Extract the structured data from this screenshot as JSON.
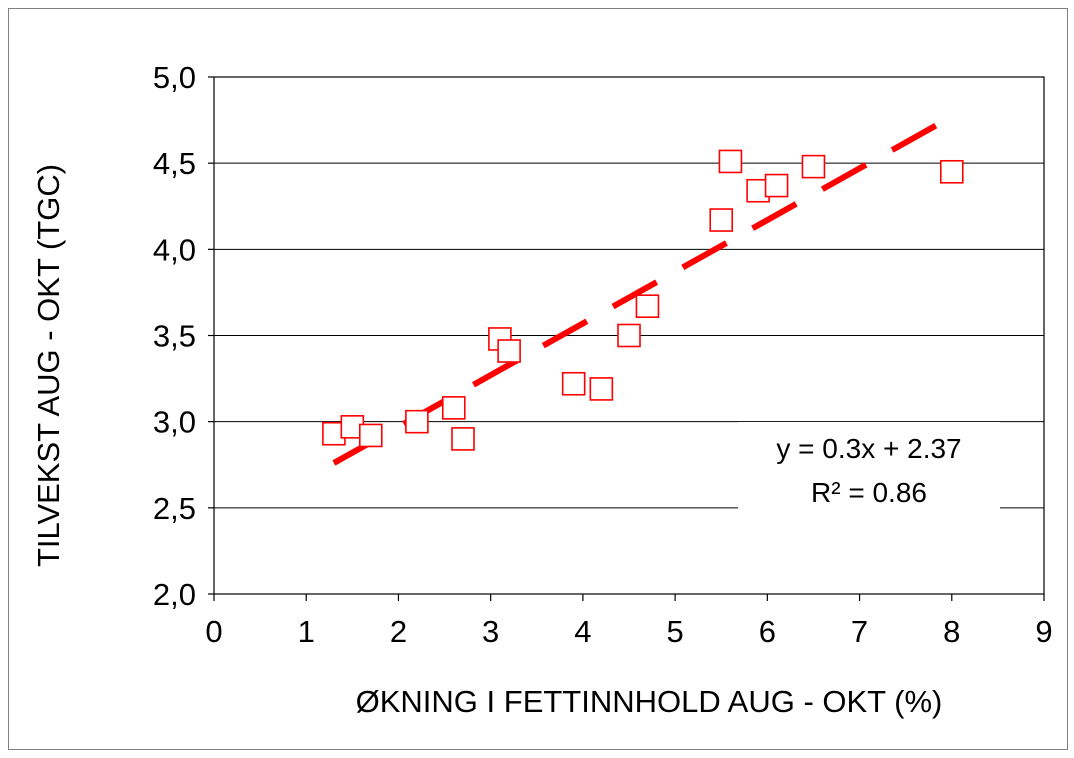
{
  "chart_data": {
    "type": "scatter",
    "xlabel": "ØKNING I FETTINNHOLD AUG - OKT (%)",
    "ylabel": "TILVEKST AUG - OKT (TGC)",
    "xlim": [
      0,
      9
    ],
    "ylim": [
      2.0,
      5.0
    ],
    "x_ticks": [
      0,
      1,
      2,
      3,
      4,
      5,
      6,
      7,
      8,
      9
    ],
    "y_ticks": [
      2.0,
      2.5,
      3.0,
      3.5,
      4.0,
      4.5,
      5.0
    ],
    "x_tick_labels": [
      "0",
      "1",
      "2",
      "3",
      "4",
      "5",
      "6",
      "7",
      "8",
      "9"
    ],
    "y_tick_labels": [
      "2,0",
      "2,5",
      "3,0",
      "3,5",
      "4,0",
      "4,5",
      "5,0"
    ],
    "grid": "horizontal",
    "series": [
      {
        "marker": "open-square",
        "color": "#ff0000",
        "x": [
          1.3,
          1.5,
          1.7,
          2.2,
          2.6,
          2.7,
          3.1,
          3.2,
          3.9,
          4.2,
          4.5,
          4.7,
          5.5,
          5.6,
          5.9,
          6.1,
          6.5,
          8.0
        ],
        "y": [
          2.93,
          2.97,
          2.92,
          3.0,
          3.08,
          2.9,
          3.48,
          3.41,
          3.22,
          3.19,
          3.5,
          3.67,
          4.17,
          4.51,
          4.34,
          4.37,
          4.48,
          4.45
        ]
      }
    ],
    "trendline": {
      "type": "linear",
      "slope": 0.3,
      "intercept": 2.37,
      "x_range": [
        1.3,
        8.0
      ],
      "style": "dashed",
      "color": "#ff0000"
    },
    "annotation": {
      "equation": "y = 0.3x + 2.37",
      "r_squared": "R² = 0.86"
    }
  }
}
